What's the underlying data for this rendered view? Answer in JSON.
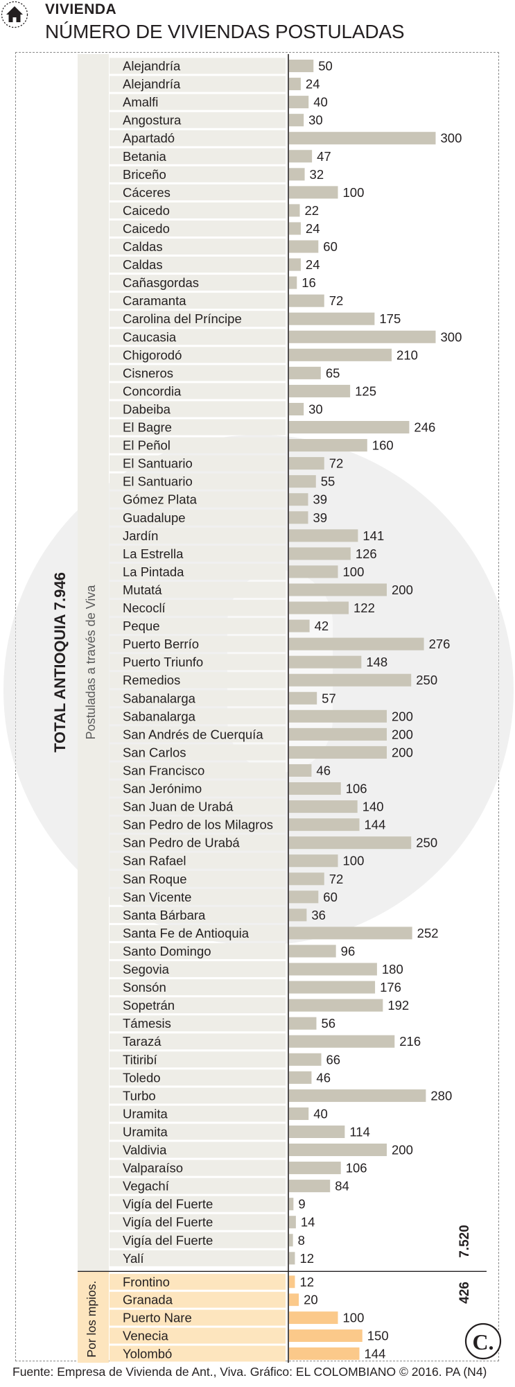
{
  "header": {
    "kicker": "VIVIENDA",
    "title": "NÚMERO DE VIVIENDAS POSTULADAS"
  },
  "footer": {
    "source": "Fuente: Empresa de Vivienda de Ant., Viva. Gráfico: EL COLOMBIANO © 2016. PA (N4)"
  },
  "logo": {
    "text": "C."
  },
  "colors": {
    "viva_bar": "#c9c5b7",
    "viva_band": "#eeede7",
    "mpios_bar": "#fbc98a",
    "mpios_band": "#fde5be",
    "watermark": "#e3e3e3",
    "axis": "#231f20"
  },
  "chart_data": {
    "type": "bar",
    "orientation": "horizontal",
    "total_label": "TOTAL ANTIOQUIA 7.946",
    "groups": [
      {
        "label": "Postuladas a través de Viva",
        "subtotal": "7.520",
        "items": [
          {
            "name": "Alejandría",
            "value": 50
          },
          {
            "name": "Alejandría",
            "value": 24
          },
          {
            "name": "Amalfi",
            "value": 40
          },
          {
            "name": "Angostura",
            "value": 30
          },
          {
            "name": "Apartadó",
            "value": 300
          },
          {
            "name": "Betania",
            "value": 47
          },
          {
            "name": "Briceño",
            "value": 32
          },
          {
            "name": "Cáceres",
            "value": 100
          },
          {
            "name": "Caicedo",
            "value": 22
          },
          {
            "name": "Caicedo",
            "value": 24
          },
          {
            "name": "Caldas",
            "value": 60
          },
          {
            "name": "Caldas",
            "value": 24
          },
          {
            "name": "Cañasgordas",
            "value": 16
          },
          {
            "name": "Caramanta",
            "value": 72
          },
          {
            "name": "Carolina del Príncipe",
            "value": 175
          },
          {
            "name": "Caucasia",
            "value": 300
          },
          {
            "name": "Chigorodó",
            "value": 210
          },
          {
            "name": "Cisneros",
            "value": 65
          },
          {
            "name": "Concordia",
            "value": 125
          },
          {
            "name": "Dabeiba",
            "value": 30
          },
          {
            "name": "El Bagre",
            "value": 246
          },
          {
            "name": "El Peñol",
            "value": 160
          },
          {
            "name": "El Santuario",
            "value": 72
          },
          {
            "name": "El Santuario",
            "value": 55
          },
          {
            "name": "Gómez Plata",
            "value": 39
          },
          {
            "name": "Guadalupe",
            "value": 39
          },
          {
            "name": "Jardín",
            "value": 141
          },
          {
            "name": "La Estrella",
            "value": 126
          },
          {
            "name": "La Pintada",
            "value": 100
          },
          {
            "name": "Mutatá",
            "value": 200
          },
          {
            "name": "Necoclí",
            "value": 122
          },
          {
            "name": "Peque",
            "value": 42
          },
          {
            "name": "Puerto Berrío",
            "value": 276
          },
          {
            "name": "Puerto Triunfo",
            "value": 148
          },
          {
            "name": "Remedios",
            "value": 250
          },
          {
            "name": "Sabanalarga",
            "value": 57
          },
          {
            "name": "Sabanalarga",
            "value": 200
          },
          {
            "name": "San Andrés de Cuerquía",
            "value": 200
          },
          {
            "name": "San Carlos",
            "value": 200
          },
          {
            "name": "San Francisco",
            "value": 46
          },
          {
            "name": "San Jerónimo",
            "value": 106
          },
          {
            "name": "San Juan de Urabá",
            "value": 140
          },
          {
            "name": "San Pedro de los Milagros",
            "value": 144
          },
          {
            "name": "San Pedro de Urabá",
            "value": 250
          },
          {
            "name": "San Rafael",
            "value": 100
          },
          {
            "name": "San Roque",
            "value": 72
          },
          {
            "name": "San Vicente",
            "value": 60
          },
          {
            "name": "Santa Bárbara",
            "value": 36
          },
          {
            "name": "Santa Fe de Antioquia",
            "value": 252
          },
          {
            "name": "Santo Domingo",
            "value": 96
          },
          {
            "name": "Segovia",
            "value": 180
          },
          {
            "name": "Sonsón",
            "value": 176
          },
          {
            "name": "Sopetrán",
            "value": 192
          },
          {
            "name": "Támesis",
            "value": 56
          },
          {
            "name": "Tarazá",
            "value": 216
          },
          {
            "name": "Titiribí",
            "value": 66
          },
          {
            "name": "Toledo",
            "value": 46
          },
          {
            "name": "Turbo",
            "value": 280
          },
          {
            "name": "Uramita",
            "value": 40
          },
          {
            "name": "Uramita",
            "value": 114
          },
          {
            "name": "Valdivia",
            "value": 200
          },
          {
            "name": "Valparaíso",
            "value": 106
          },
          {
            "name": "Vegachí",
            "value": 84
          },
          {
            "name": "Vigía del Fuerte",
            "value": 9
          },
          {
            "name": "Vigía del Fuerte",
            "value": 14
          },
          {
            "name": "Vigía del Fuerte",
            "value": 8
          },
          {
            "name": "Yalí",
            "value": 12
          }
        ]
      },
      {
        "label": "Por los mpios.",
        "subtotal": "426",
        "items": [
          {
            "name": "Frontino",
            "value": 12
          },
          {
            "name": "Granada",
            "value": 20
          },
          {
            "name": "Puerto Nare",
            "value": 100
          },
          {
            "name": "Venecia",
            "value": 150
          },
          {
            "name": "Yolombó",
            "value": 144
          }
        ]
      }
    ]
  }
}
